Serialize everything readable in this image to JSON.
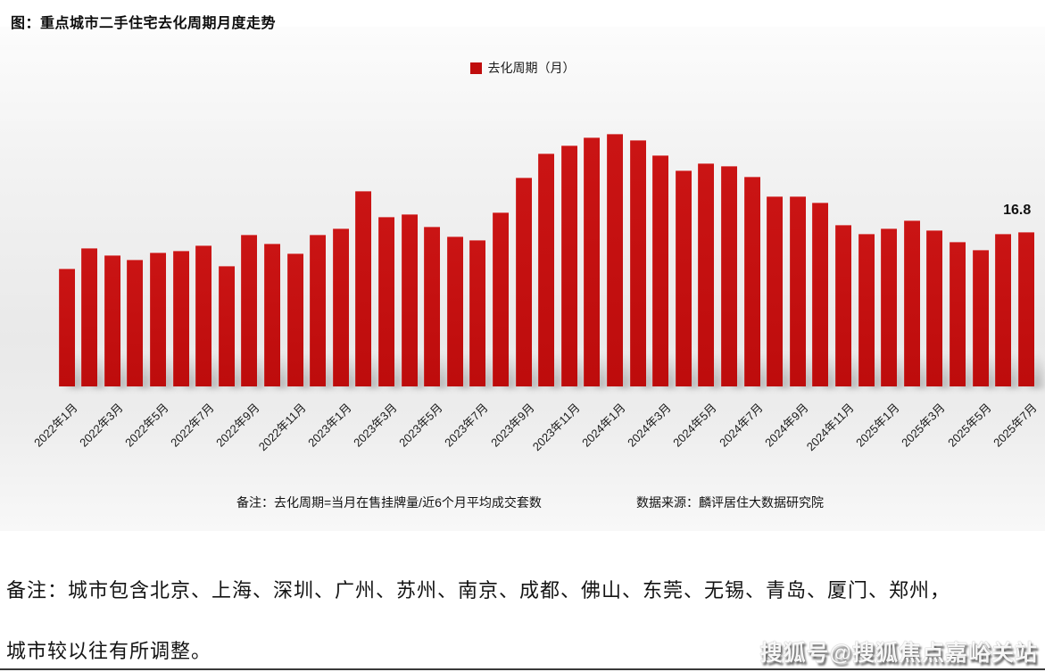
{
  "title": "图：重点城市二手住宅去化周期月度走势",
  "legend": {
    "label": "去化周期（月）",
    "color": "#c00d0d"
  },
  "footnote": {
    "note": "备注：去化周期=当月在售挂牌量/近6个月平均成交套数",
    "source": "数据来源：麟评居住大数据研究院"
  },
  "remark": {
    "line1": "备注：城市包含北京、上海、深圳、广州、苏州、南京、成都、佛山、东莞、无锡、青岛、厦门、郑州，",
    "line2": "城市较以往有所调整。"
  },
  "watermark": "搜狐号@搜狐焦点嘉峪关站",
  "chart_data": {
    "type": "bar",
    "title": "图：重点城市二手住宅去化周期月度走势",
    "series_name": "去化周期（月）",
    "bar_color": "#c00d0d",
    "legend_position": "top-center",
    "grid": false,
    "ylim": [
      0,
      30
    ],
    "categories": [
      "2022年1月",
      "2022年2月",
      "2022年3月",
      "2022年4月",
      "2022年5月",
      "2022年6月",
      "2022年7月",
      "2022年8月",
      "2022年9月",
      "2022年10月",
      "2022年11月",
      "2022年12月",
      "2023年1月",
      "2023年2月",
      "2023年3月",
      "2023年4月",
      "2023年5月",
      "2023年6月",
      "2023年7月",
      "2023年8月",
      "2023年9月",
      "2023年10月",
      "2023年11月",
      "2023年12月",
      "2024年1月",
      "2024年2月",
      "2024年3月",
      "2024年4月",
      "2024年5月",
      "2024年6月",
      "2024年7月",
      "2024年8月",
      "2024年9月",
      "2024年10月",
      "2024年11月",
      "2024年12月",
      "2025年1月",
      "2025年2月",
      "2025年3月",
      "2025年4月",
      "2025年5月",
      "2025年6月",
      "2025年7月"
    ],
    "values": [
      12.8,
      15.0,
      14.3,
      13.8,
      14.6,
      14.8,
      15.3,
      13.1,
      16.5,
      15.5,
      14.5,
      16.5,
      17.2,
      21.3,
      18.4,
      18.7,
      17.4,
      16.3,
      15.9,
      18.9,
      22.7,
      25.3,
      26.2,
      27.1,
      27.5,
      26.8,
      25.1,
      23.5,
      24.3,
      24.0,
      22.8,
      20.7,
      20.7,
      20.0,
      17.6,
      16.6,
      17.2,
      18.1,
      17.0,
      15.7,
      14.9,
      16.6,
      16.8
    ],
    "x_tick_labels": [
      "2022年1月",
      "2022年3月",
      "2022年5月",
      "2022年7月",
      "2022年9月",
      "2022年11月",
      "2023年1月",
      "2023年3月",
      "2023年5月",
      "2023年7月",
      "2023年9月",
      "2023年11月",
      "2024年1月",
      "2024年3月",
      "2024年5月",
      "2024年7月",
      "2024年9月",
      "2024年11月",
      "2025年1月",
      "2025年3月",
      "2025年5月",
      "2025年7月"
    ],
    "data_label": {
      "text": "16.8",
      "category": "2025年7月"
    }
  }
}
